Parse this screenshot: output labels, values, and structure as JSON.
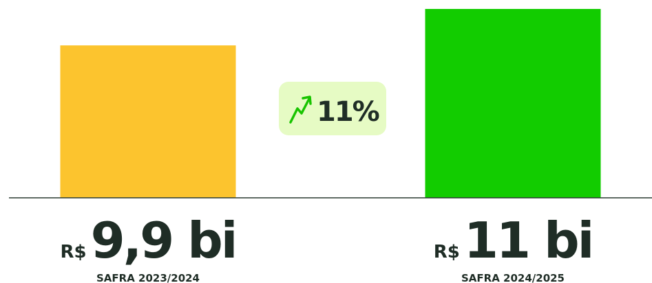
{
  "chart_data": {
    "type": "bar",
    "categories": [
      "SAFRA 2023/2024",
      "SAFRA 2024/2025"
    ],
    "values": [
      9.9,
      11
    ],
    "value_labels": [
      "9,9 bi",
      "11 bi"
    ],
    "currency_prefix": "R$",
    "colors": [
      "#fcc42e",
      "#12cc00"
    ],
    "annotation": "11%",
    "ylim": [
      5.3,
      11.27
    ]
  }
}
